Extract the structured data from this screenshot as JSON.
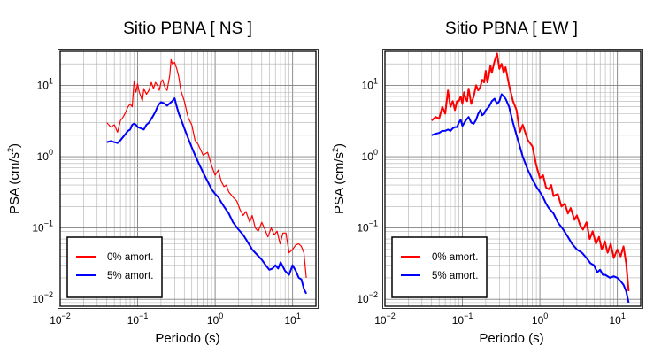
{
  "chart_data": [
    {
      "type": "line",
      "title": "Sitio PBNA [ NS ]",
      "xlabel": "Periodo (s)",
      "ylabel_prefix": "PSA (cm/s",
      "ylabel_exp": "2",
      "ylabel_suffix": ")",
      "xscale": "log",
      "yscale": "log",
      "xlim": [
        0.01,
        20
      ],
      "ylim": [
        0.008,
        30
      ],
      "grid": true,
      "legend_position": "bottom-left",
      "x_ticks": [
        {
          "base": "10",
          "exp": "−2"
        },
        {
          "base": "10",
          "exp": "−1"
        },
        {
          "base": "10",
          "exp": "0"
        },
        {
          "base": "10",
          "exp": "1"
        }
      ],
      "y_ticks": [
        {
          "base": "10",
          "exp": "−2"
        },
        {
          "base": "10",
          "exp": "−1"
        },
        {
          "base": "10",
          "exp": "0"
        },
        {
          "base": "10",
          "exp": "1"
        }
      ],
      "series": [
        {
          "name": "0% amort.",
          "color": "#ff0000",
          "x": [
            0.04,
            0.045,
            0.05,
            0.055,
            0.06,
            0.065,
            0.07,
            0.075,
            0.08,
            0.085,
            0.09,
            0.095,
            0.1,
            0.105,
            0.11,
            0.115,
            0.12,
            0.13,
            0.14,
            0.15,
            0.16,
            0.17,
            0.18,
            0.19,
            0.2,
            0.21,
            0.22,
            0.23,
            0.24,
            0.26,
            0.27,
            0.28,
            0.3,
            0.32,
            0.34,
            0.36,
            0.4,
            0.45,
            0.5,
            0.55,
            0.6,
            0.7,
            0.8,
            0.9,
            1.0,
            1.1,
            1.2,
            1.3,
            1.4,
            1.5,
            1.7,
            1.9,
            2.1,
            2.3,
            2.5,
            2.8,
            3.0,
            3.3,
            3.6,
            4.0,
            4.4,
            4.8,
            5.3,
            5.8,
            6.3,
            6.9,
            7.5,
            8.2,
            9.0,
            10.0,
            11.0,
            12.0,
            13.0,
            14.0,
            15.0
          ],
          "y": [
            3.0,
            2.6,
            2.8,
            2.2,
            3.2,
            3.6,
            4.2,
            5.0,
            5.5,
            5.0,
            11.5,
            8.0,
            10.5,
            8.0,
            7.0,
            6.0,
            9.0,
            7.5,
            8.5,
            11.0,
            9.0,
            11.0,
            10.0,
            8.5,
            11.0,
            12.0,
            10.0,
            9.0,
            8.5,
            14.0,
            23.0,
            20.0,
            21.0,
            17.0,
            13.0,
            8.5,
            6.0,
            3.5,
            2.8,
            1.7,
            1.5,
            1.05,
            1.15,
            0.75,
            0.55,
            0.65,
            0.45,
            0.38,
            0.4,
            0.32,
            0.27,
            0.24,
            0.18,
            0.15,
            0.17,
            0.12,
            0.15,
            0.1,
            0.09,
            0.12,
            0.095,
            0.075,
            0.1,
            0.08,
            0.09,
            0.06,
            0.085,
            0.085,
            0.045,
            0.05,
            0.058,
            0.06,
            0.055,
            0.045,
            0.02
          ]
        },
        {
          "name": "5% amort.",
          "color": "#0000ff",
          "x": [
            0.04,
            0.045,
            0.05,
            0.055,
            0.06,
            0.065,
            0.07,
            0.075,
            0.08,
            0.085,
            0.09,
            0.095,
            0.1,
            0.11,
            0.12,
            0.13,
            0.14,
            0.15,
            0.16,
            0.17,
            0.18,
            0.19,
            0.2,
            0.22,
            0.24,
            0.26,
            0.28,
            0.3,
            0.32,
            0.34,
            0.36,
            0.4,
            0.45,
            0.5,
            0.55,
            0.6,
            0.7,
            0.8,
            0.9,
            1.0,
            1.1,
            1.2,
            1.3,
            1.5,
            1.7,
            2.0,
            2.3,
            2.6,
            3.0,
            3.5,
            4.0,
            4.5,
            5.0,
            5.5,
            6.0,
            6.5,
            7.0,
            8.0,
            9.0,
            10.0,
            11.0,
            12.0,
            13.0,
            14.0,
            15.0
          ],
          "y": [
            1.6,
            1.65,
            1.6,
            1.55,
            1.7,
            1.9,
            2.1,
            2.3,
            2.4,
            2.8,
            2.9,
            2.8,
            2.6,
            2.5,
            2.4,
            2.8,
            3.0,
            3.4,
            3.8,
            4.3,
            5.0,
            5.5,
            5.8,
            5.6,
            5.2,
            5.6,
            6.0,
            6.6,
            5.0,
            4.0,
            3.4,
            2.5,
            1.8,
            1.35,
            1.05,
            0.85,
            0.6,
            0.45,
            0.35,
            0.3,
            0.27,
            0.23,
            0.2,
            0.16,
            0.12,
            0.095,
            0.08,
            0.065,
            0.05,
            0.042,
            0.036,
            0.03,
            0.026,
            0.027,
            0.03,
            0.027,
            0.033,
            0.025,
            0.022,
            0.03,
            0.025,
            0.02,
            0.019,
            0.014,
            0.012
          ]
        }
      ]
    },
    {
      "type": "line",
      "title": "Sitio PBNA [ EW ]",
      "xlabel": "Periodo (s)",
      "ylabel_prefix": "PSA (cm/s",
      "ylabel_exp": "2",
      "ylabel_suffix": ")",
      "xscale": "log",
      "yscale": "log",
      "xlim": [
        0.01,
        20
      ],
      "ylim": [
        0.008,
        30
      ],
      "grid": true,
      "legend_position": "bottom-left",
      "x_ticks": [
        {
          "base": "10",
          "exp": "−2"
        },
        {
          "base": "10",
          "exp": "−1"
        },
        {
          "base": "10",
          "exp": "0"
        },
        {
          "base": "10",
          "exp": "1"
        }
      ],
      "y_ticks": [
        {
          "base": "10",
          "exp": "−2"
        },
        {
          "base": "10",
          "exp": "−1"
        },
        {
          "base": "10",
          "exp": "0"
        },
        {
          "base": "10",
          "exp": "1"
        }
      ],
      "series": [
        {
          "name": "0% amort.",
          "color": "#ff0000",
          "x": [
            0.04,
            0.045,
            0.05,
            0.055,
            0.06,
            0.065,
            0.07,
            0.075,
            0.08,
            0.085,
            0.09,
            0.095,
            0.1,
            0.105,
            0.11,
            0.115,
            0.12,
            0.13,
            0.14,
            0.15,
            0.16,
            0.17,
            0.18,
            0.19,
            0.2,
            0.21,
            0.22,
            0.23,
            0.24,
            0.26,
            0.28,
            0.3,
            0.32,
            0.34,
            0.36,
            0.4,
            0.45,
            0.5,
            0.55,
            0.6,
            0.7,
            0.8,
            0.9,
            1.0,
            1.1,
            1.2,
            1.3,
            1.4,
            1.5,
            1.7,
            1.9,
            2.1,
            2.3,
            2.5,
            2.8,
            3.0,
            3.3,
            3.6,
            4.0,
            4.4,
            4.8,
            5.3,
            5.8,
            6.3,
            6.9,
            7.5,
            8.2,
            9.0,
            10.0,
            11.0,
            12.0,
            13.0,
            14.0
          ],
          "y": [
            3.2,
            3.6,
            3.4,
            5.0,
            4.0,
            8.5,
            5.0,
            6.0,
            4.5,
            6.0,
            6.0,
            7.0,
            5.5,
            8.0,
            6.5,
            6.0,
            9.0,
            5.5,
            7.0,
            10.0,
            8.5,
            9.5,
            12.0,
            11.0,
            16.0,
            11.0,
            14.0,
            19.0,
            15.0,
            22.0,
            28.0,
            17.0,
            20.0,
            15.0,
            18.0,
            10.0,
            6.0,
            4.5,
            2.2,
            2.8,
            1.7,
            1.4,
            0.75,
            0.5,
            0.55,
            0.37,
            0.35,
            0.4,
            0.28,
            0.3,
            0.2,
            0.22,
            0.16,
            0.19,
            0.13,
            0.15,
            0.11,
            0.095,
            0.12,
            0.07,
            0.09,
            0.06,
            0.075,
            0.05,
            0.065,
            0.045,
            0.06,
            0.038,
            0.05,
            0.04,
            0.055,
            0.032,
            0.013
          ]
        },
        {
          "name": "5% amort.",
          "color": "#0000ff",
          "x": [
            0.04,
            0.045,
            0.05,
            0.055,
            0.06,
            0.065,
            0.07,
            0.075,
            0.08,
            0.085,
            0.09,
            0.095,
            0.1,
            0.11,
            0.12,
            0.13,
            0.14,
            0.15,
            0.16,
            0.17,
            0.18,
            0.19,
            0.2,
            0.22,
            0.24,
            0.26,
            0.28,
            0.3,
            0.32,
            0.34,
            0.36,
            0.4,
            0.45,
            0.5,
            0.55,
            0.6,
            0.7,
            0.8,
            0.9,
            1.0,
            1.1,
            1.2,
            1.3,
            1.5,
            1.7,
            2.0,
            2.3,
            2.6,
            3.0,
            3.5,
            4.0,
            4.5,
            5.0,
            5.5,
            6.0,
            6.5,
            7.0,
            8.0,
            9.0,
            10.0,
            11.0,
            12.0,
            13.0,
            14.0
          ],
          "y": [
            2.0,
            2.1,
            2.15,
            2.3,
            2.3,
            2.4,
            2.3,
            2.5,
            2.6,
            2.6,
            3.0,
            3.3,
            2.7,
            3.2,
            3.6,
            3.0,
            2.9,
            3.3,
            4.0,
            4.5,
            3.8,
            4.0,
            4.5,
            5.0,
            6.0,
            6.5,
            5.5,
            6.0,
            7.5,
            7.0,
            6.5,
            5.0,
            3.0,
            2.0,
            1.4,
            1.0,
            0.65,
            0.48,
            0.38,
            0.32,
            0.27,
            0.22,
            0.19,
            0.16,
            0.12,
            0.095,
            0.075,
            0.06,
            0.05,
            0.045,
            0.038,
            0.032,
            0.03,
            0.024,
            0.026,
            0.022,
            0.022,
            0.02,
            0.021,
            0.02,
            0.018,
            0.016,
            0.013,
            0.009
          ]
        }
      ]
    }
  ]
}
